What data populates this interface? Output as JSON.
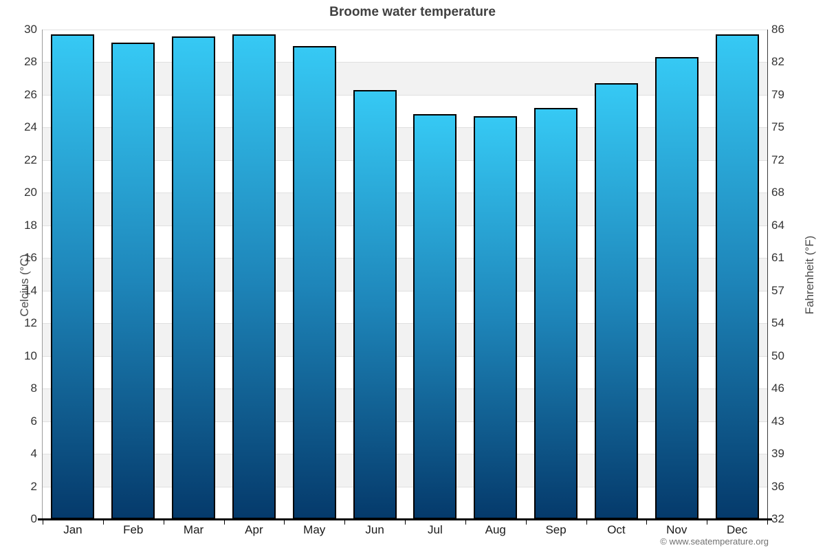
{
  "title": "Broome water temperature",
  "attribution": "© www.seatemperature.org",
  "axes": {
    "left": {
      "label": "Celcius (°C)",
      "ticks": [
        "30",
        "28",
        "26",
        "24",
        "22",
        "20",
        "18",
        "16",
        "14",
        "12",
        "10",
        "8",
        "6",
        "4",
        "2",
        "0"
      ]
    },
    "right": {
      "label": "Fahrenheit (°F)",
      "ticks": [
        "86",
        "82",
        "79",
        "75",
        "72",
        "68",
        "64",
        "61",
        "57",
        "54",
        "50",
        "46",
        "43",
        "39",
        "36",
        "32"
      ]
    }
  },
  "chart_data": {
    "type": "bar",
    "title": "Broome water temperature",
    "categories": [
      "Jan",
      "Feb",
      "Mar",
      "Apr",
      "May",
      "Jun",
      "Jul",
      "Aug",
      "Sep",
      "Oct",
      "Nov",
      "Dec"
    ],
    "values": [
      29.7,
      29.2,
      29.6,
      29.7,
      29.0,
      26.3,
      24.8,
      24.7,
      25.2,
      26.7,
      28.3,
      29.7
    ],
    "unit": "°C",
    "xlabel": "",
    "ylabel_left": "Celcius (°C)",
    "ylabel_right": "Fahrenheit (°F)",
    "ylim": [
      0,
      30
    ],
    "y_tick_step": 2,
    "grid": true,
    "alternating_bands": true,
    "legend": "none",
    "colors": {
      "bar_top": "#36C9F4",
      "bar_mid": "#1E86BA",
      "bar_bottom": "#053A6B",
      "bar_border": "#000000",
      "band_alt": "#F2F2F2",
      "band_main": "#FFFFFF",
      "gridline": "#E0E0E0",
      "axis_bottom": "#000000",
      "tick_label": "#333333",
      "title_color": "#404040",
      "attribution_color": "#707070"
    }
  }
}
